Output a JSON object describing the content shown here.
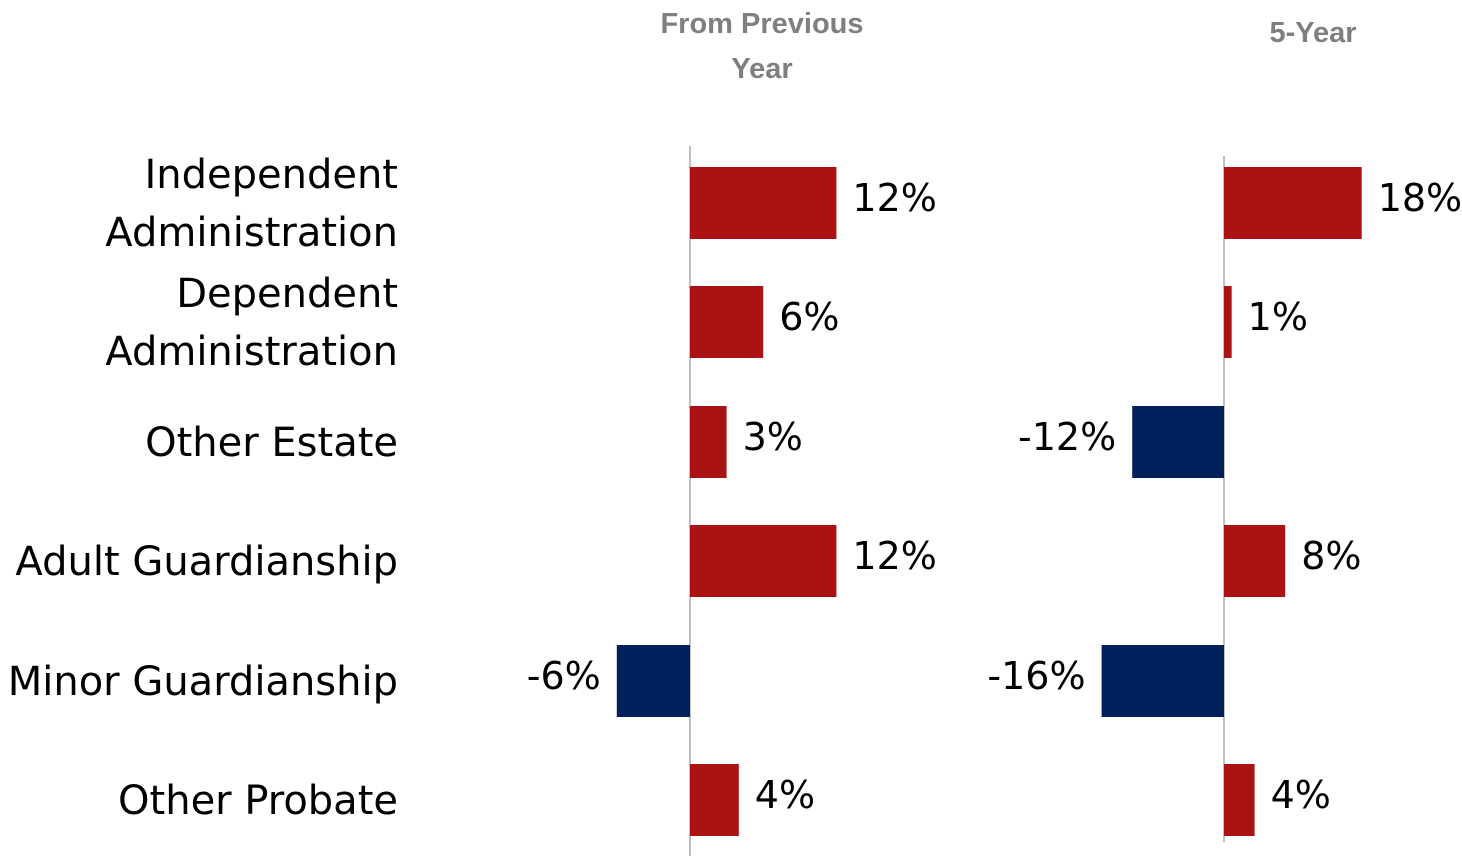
{
  "chart_data": {
    "type": "bar",
    "orientation": "horizontal",
    "categories": [
      [
        "Independent",
        "Administration"
      ],
      [
        "Dependent",
        "Administration"
      ],
      [
        "Other Estate"
      ],
      [
        "Adult Guardianship"
      ],
      [
        "Minor Guardianship"
      ],
      [
        "Other Probate"
      ]
    ],
    "panels": [
      {
        "title": [
          "From Previous",
          "Year"
        ],
        "values": [
          12,
          6,
          3,
          12,
          -6,
          4
        ],
        "labels": [
          "12%",
          "6%",
          "3%",
          "12%",
          "-6%",
          "4%"
        ]
      },
      {
        "title": [
          "5-Year"
        ],
        "values": [
          18,
          1,
          -12,
          8,
          -16,
          4
        ],
        "labels": [
          "18%",
          "1%",
          "-12%",
          "8%",
          "-16%",
          "4%"
        ]
      }
    ],
    "positive_color": "#ab1214",
    "negative_color": "#00205b",
    "axis_color": "#bfbfbf",
    "title_color": "#7f7f7f",
    "grid": false,
    "legend": "none"
  }
}
